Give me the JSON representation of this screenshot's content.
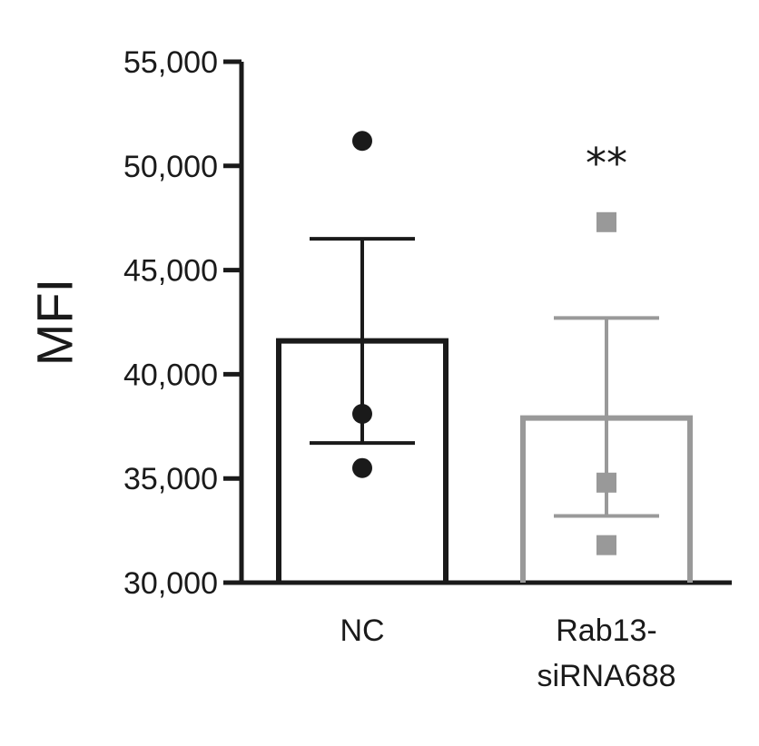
{
  "chart_data": {
    "type": "bar",
    "title": "",
    "ylabel": "MFI",
    "xlabel": "",
    "ylim": [
      30000,
      55000
    ],
    "yticks": [
      30000,
      35000,
      40000,
      45000,
      50000,
      55000
    ],
    "ytick_labels": [
      "30,000",
      "35,000",
      "40,000",
      "45,000",
      "50,000",
      "55,000"
    ],
    "categories": [
      {
        "label_lines": [
          "NC"
        ],
        "mean": 41600,
        "err_high": 46500,
        "err_low": 36700,
        "points": [
          51200,
          38100,
          35500
        ],
        "marker": "circle",
        "color": "#1a1a1a"
      },
      {
        "label_lines": [
          "Rab13-",
          "siRNA688"
        ],
        "mean": 37900,
        "err_high": 42700,
        "err_low": 33200,
        "points": [
          47300,
          34800,
          31800
        ],
        "marker": "square",
        "color": "#999999"
      }
    ],
    "annotations": [
      {
        "category_index": 1,
        "text": "**"
      }
    ]
  }
}
